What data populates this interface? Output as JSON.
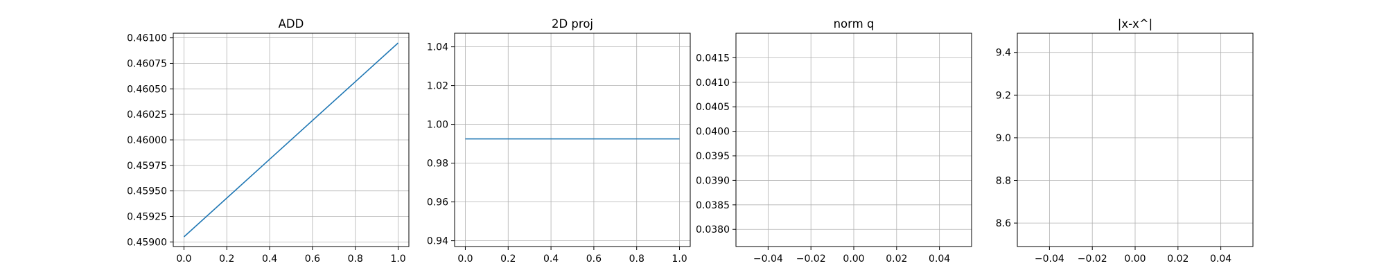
{
  "chart_data": [
    {
      "type": "line",
      "title": "ADD",
      "xlabel": "",
      "ylabel": "",
      "x": [
        0.0,
        1.0
      ],
      "series": [
        {
          "values": [
            0.45905,
            0.46095
          ]
        }
      ],
      "xlim": [
        -0.05,
        1.05
      ],
      "ylim": [
        0.458955,
        0.461045
      ],
      "xticks": [
        "0.0",
        "0.2",
        "0.4",
        "0.6",
        "0.8",
        "1.0"
      ],
      "yticks": [
        "0.45900",
        "0.45925",
        "0.45950",
        "0.45975",
        "0.46000",
        "0.46025",
        "0.46050",
        "0.46075",
        "0.46100"
      ],
      "grid": true,
      "color": "#1f77b4"
    },
    {
      "type": "line",
      "title": "2D proj",
      "xlabel": "",
      "ylabel": "",
      "x": [
        0.0,
        1.0
      ],
      "series": [
        {
          "values": [
            0.9925,
            0.9925
          ]
        }
      ],
      "xlim": [
        -0.05,
        1.05
      ],
      "ylim": [
        0.937,
        1.047
      ],
      "xticks": [
        "0.0",
        "0.2",
        "0.4",
        "0.6",
        "0.8",
        "1.0"
      ],
      "yticks": [
        "0.94",
        "0.96",
        "0.98",
        "1.00",
        "1.02",
        "1.04"
      ],
      "grid": true,
      "color": "#1f77b4"
    },
    {
      "type": "line",
      "title": "norm q",
      "xlabel": "",
      "ylabel": "",
      "x": [],
      "series": [],
      "xlim": [
        -0.055,
        0.055
      ],
      "ylim": [
        0.03765,
        0.042
      ],
      "xticks": [
        "−0.04",
        "−0.02",
        "0.00",
        "0.02",
        "0.04"
      ],
      "yticks": [
        "0.0380",
        "0.0385",
        "0.0390",
        "0.0395",
        "0.0400",
        "0.0405",
        "0.0410",
        "0.0415"
      ],
      "grid": true,
      "color": "#1f77b4"
    },
    {
      "type": "line",
      "title": "|x-x^|",
      "xlabel": "",
      "ylabel": "",
      "x": [],
      "series": [],
      "xlim": [
        -0.055,
        0.055
      ],
      "ylim": [
        8.49,
        9.49
      ],
      "xticks": [
        "−0.04",
        "−0.02",
        "0.00",
        "0.02",
        "0.04"
      ],
      "yticks": [
        "8.6",
        "8.8",
        "9.0",
        "9.2",
        "9.4"
      ],
      "grid": true,
      "color": "#1f77b4"
    }
  ]
}
